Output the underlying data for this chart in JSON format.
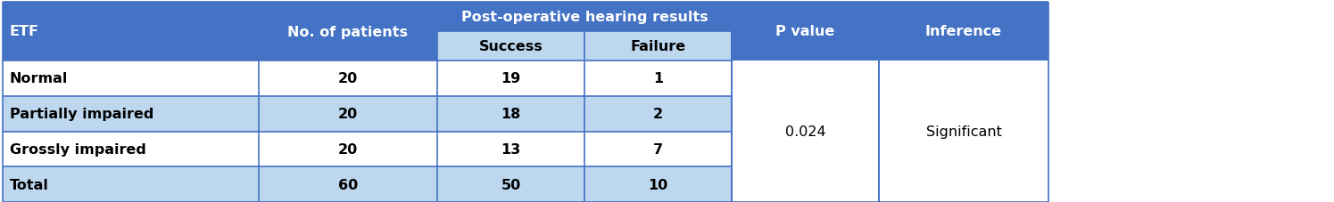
{
  "header_bg": "#4472C4",
  "subheader_bg": "#BDD7EE",
  "row_bg_white": "#FFFFFF",
  "row_bg_blue": "#BDD7EE",
  "border_color": "#4472C4",
  "header_text_color": "#FFFFFF",
  "data_text_color": "#000000",
  "rows": [
    [
      "Normal",
      "20",
      "19",
      "1"
    ],
    [
      "Partially impaired",
      "20",
      "18",
      "2"
    ],
    [
      "Grossly impaired",
      "20",
      "13",
      "7"
    ],
    [
      "Total",
      "60",
      "50",
      "10"
    ]
  ],
  "row_bgs": [
    "#FFFFFF",
    "#BDD7EE",
    "#FFFFFF",
    "#BDD7EE"
  ],
  "p_value": "0.024",
  "inference": "Significant",
  "fig_width": 14.95,
  "fig_height": 2.28,
  "dpi": 100
}
